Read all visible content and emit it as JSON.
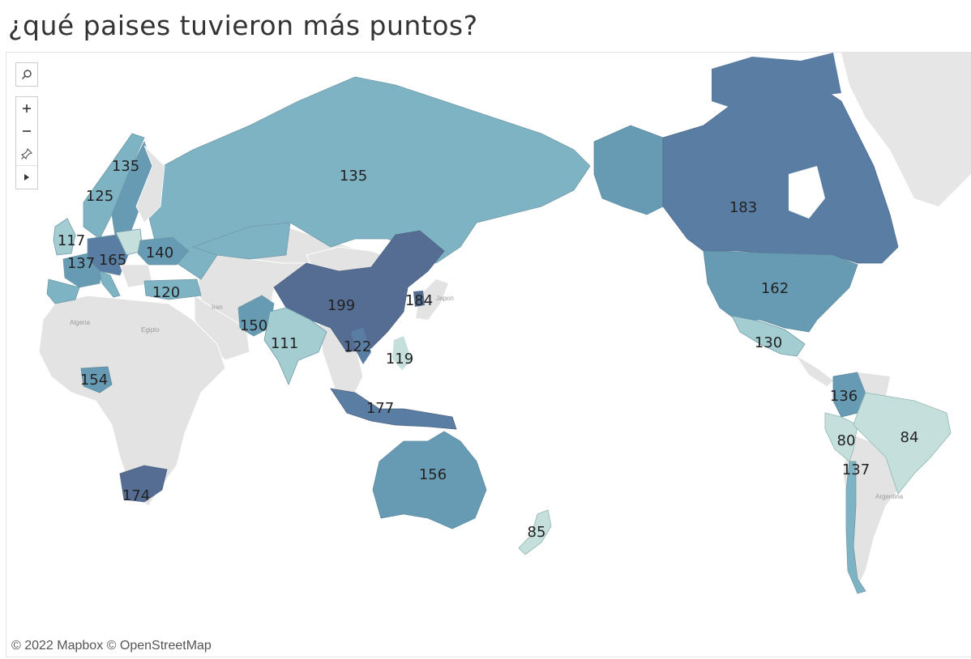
{
  "title": "¿qué paises tuvieron más puntos?",
  "attribution": "© 2022 Mapbox © OpenStreetMap",
  "toolbar": {
    "search_icon": "magnifier-icon",
    "zoom_in_icon": "plus-icon",
    "zoom_out_icon": "minus-icon",
    "pin_icon": "pin-icon",
    "expand_icon": "play-triangle-icon"
  },
  "legend_colors": {
    "low": "#c5e0dc",
    "mid_low": "#a3cdd0",
    "mid": "#7eb3c4",
    "mid_high": "#679bb4",
    "high": "#5a7ea3",
    "max": "#566d93",
    "no_data": "#e3e3e3",
    "ocean": "#ffffff"
  },
  "basemap_labels": [
    "Iran",
    "Algeria",
    "Egipto",
    "Japon",
    "Argentina"
  ],
  "countries": [
    {
      "name": "Rusia",
      "value": 135
    },
    {
      "name": "Suecia",
      "value": 135
    },
    {
      "name": "Noruega",
      "value": 125
    },
    {
      "name": "Reino Unido",
      "value": 117
    },
    {
      "name": "Francia",
      "value": 137
    },
    {
      "name": "Alemania",
      "value": 165
    },
    {
      "name": "Ucrania",
      "value": 140
    },
    {
      "name": "Turquía",
      "value": 120
    },
    {
      "name": "China",
      "value": 199
    },
    {
      "name": "Corea del Sur",
      "value": 184
    },
    {
      "name": "Pakistán",
      "value": 150
    },
    {
      "name": "India",
      "value": 111
    },
    {
      "name": "Vietnam",
      "value": 122
    },
    {
      "name": "Filipinas",
      "value": 119
    },
    {
      "name": "Indonesia",
      "value": 177
    },
    {
      "name": "Australia",
      "value": 156
    },
    {
      "name": "Nueva Zelanda",
      "value": 85
    },
    {
      "name": "Nigeria",
      "value": 154
    },
    {
      "name": "Sudáfrica",
      "value": 174
    },
    {
      "name": "Canadá",
      "value": 183
    },
    {
      "name": "Estados Unidos",
      "value": 162
    },
    {
      "name": "México",
      "value": 130
    },
    {
      "name": "Colombia",
      "value": 136
    },
    {
      "name": "Perú",
      "value": 80
    },
    {
      "name": "Brasil",
      "value": 84
    },
    {
      "name": "Chile",
      "value": 137
    }
  ]
}
